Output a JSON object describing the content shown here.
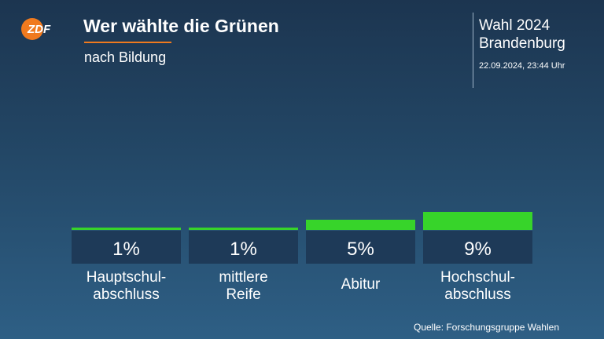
{
  "header": {
    "logo_text": "ZDF",
    "title": "Wer wählte die Grünen",
    "subtitle": "nach Bildung"
  },
  "election": {
    "line1": "Wahl 2024",
    "line2": "Brandenburg",
    "timestamp": "22.09.2024, 23:44 Uhr"
  },
  "source": "Quelle: Forschungsgruppe Wahlen",
  "colors": {
    "bar": "#37d42a",
    "value_box": "#1e3a58",
    "accent": "#f07a1e"
  },
  "chart_data": {
    "type": "bar",
    "title": "Wer wählte die Grünen",
    "subtitle": "nach Bildung",
    "categories": [
      "Hauptschul-\nabschluss",
      "mittlere\nReife",
      "Abitur",
      "Hochschul-\nabschluss"
    ],
    "values": [
      1,
      1,
      5,
      9
    ],
    "value_labels": [
      "1%",
      "1%",
      "5%",
      "9%"
    ],
    "unit": "%",
    "ylim": [
      0,
      9
    ],
    "grid": false,
    "legend": "none"
  }
}
